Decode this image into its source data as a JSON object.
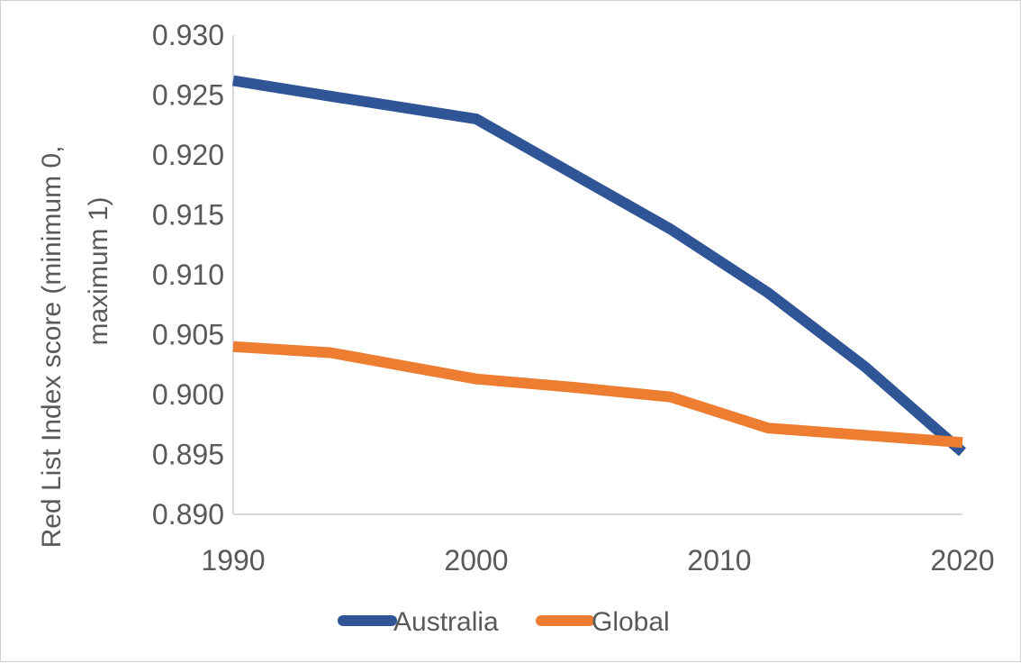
{
  "chart_data": {
    "type": "line",
    "title": "",
    "xlabel": "",
    "ylabel_lines": [
      "Red List Index score (minimum 0,",
      "maximum 1)"
    ],
    "xlim": [
      1990,
      2020
    ],
    "ylim": [
      0.89,
      0.93
    ],
    "x_ticks": [
      1990,
      2000,
      2010,
      2020
    ],
    "x_tick_labels": [
      "1990",
      "2000",
      "2010",
      "2020"
    ],
    "y_ticks": [
      0.89,
      0.895,
      0.9,
      0.905,
      0.91,
      0.915,
      0.92,
      0.925,
      0.93
    ],
    "y_tick_labels": [
      "0.890",
      "0.895",
      "0.900",
      "0.905",
      "0.910",
      "0.915",
      "0.920",
      "0.925",
      "0.930"
    ],
    "grid": false,
    "legend_position": "bottom",
    "series": [
      {
        "name": "Australia",
        "color": "#2F5597",
        "points": [
          [
            1990,
            0.9262
          ],
          [
            1994,
            0.9249
          ],
          [
            2000,
            0.923
          ],
          [
            2004,
            0.9184
          ],
          [
            2008,
            0.9138
          ],
          [
            2012,
            0.9085
          ],
          [
            2016,
            0.9023
          ],
          [
            2020,
            0.8952
          ]
        ]
      },
      {
        "name": "Global",
        "color": "#ED7D31",
        "points": [
          [
            1990,
            0.904
          ],
          [
            1994,
            0.9035
          ],
          [
            2000,
            0.9013
          ],
          [
            2004,
            0.9006
          ],
          [
            2008,
            0.8998
          ],
          [
            2012,
            0.8972
          ],
          [
            2016,
            0.8966
          ],
          [
            2020,
            0.896
          ]
        ]
      }
    ]
  }
}
